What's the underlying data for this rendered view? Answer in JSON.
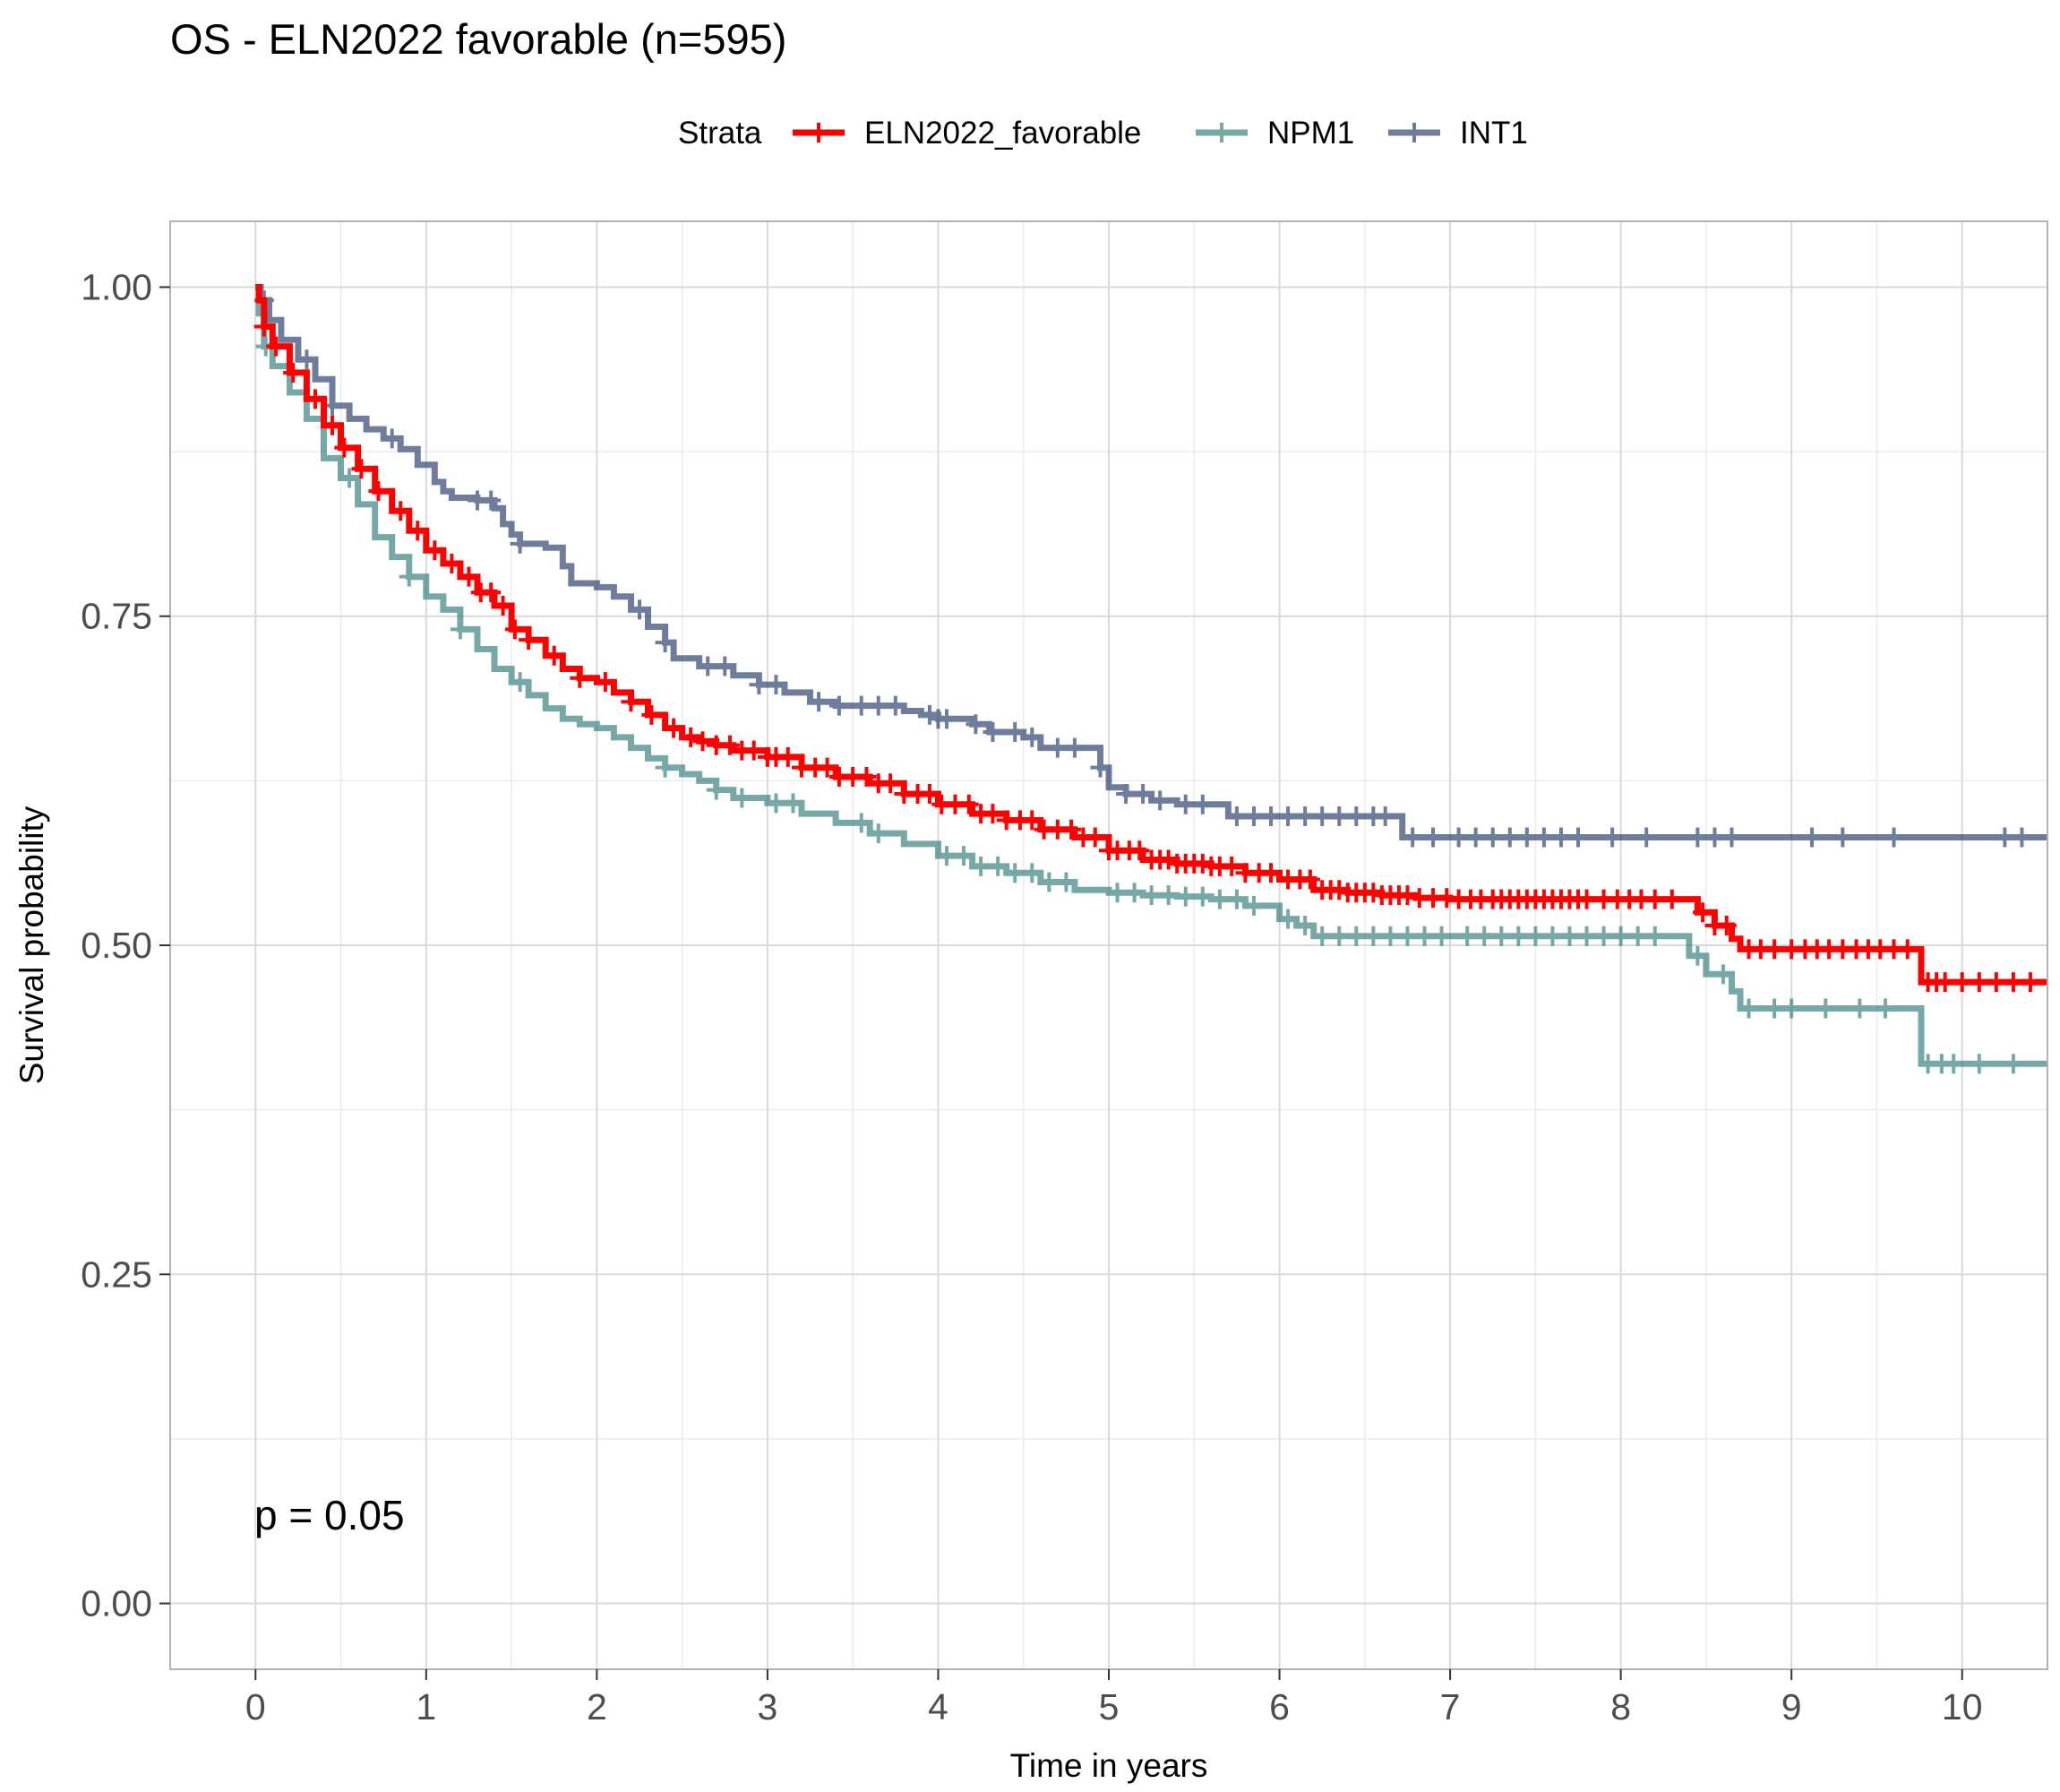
{
  "chart_data": {
    "type": "line",
    "title": "OS - ELN2022 favorable (n=595)",
    "xlabel": "Time in years",
    "ylabel": "Survival probability",
    "xlim": [
      -0.5,
      10.5
    ],
    "ylim": [
      -0.05,
      1.05
    ],
    "x_ticks": [
      "0",
      "1",
      "2",
      "3",
      "4",
      "5",
      "6",
      "7",
      "8",
      "9",
      "10"
    ],
    "y_ticks": [
      "0.00",
      "0.25",
      "0.50",
      "0.75",
      "1.00"
    ],
    "grid": true,
    "legend": {
      "title": "Strata",
      "position": "top"
    },
    "annotation": "p = 0.05",
    "series": [
      {
        "name": "ELN2022_favorable",
        "color": "#ff0000",
        "opacity": 1.0,
        "points": [
          [
            0,
            1.0
          ],
          [
            0.02,
            0.99
          ],
          [
            0.05,
            0.97
          ],
          [
            0.1,
            0.955
          ],
          [
            0.2,
            0.935
          ],
          [
            0.3,
            0.915
          ],
          [
            0.4,
            0.895
          ],
          [
            0.5,
            0.878
          ],
          [
            0.6,
            0.862
          ],
          [
            0.7,
            0.845
          ],
          [
            0.8,
            0.83
          ],
          [
            0.9,
            0.815
          ],
          [
            1.0,
            0.8
          ],
          [
            1.1,
            0.79
          ],
          [
            1.2,
            0.78
          ],
          [
            1.3,
            0.768
          ],
          [
            1.4,
            0.758
          ],
          [
            1.5,
            0.74
          ],
          [
            1.6,
            0.732
          ],
          [
            1.7,
            0.72
          ],
          [
            1.8,
            0.71
          ],
          [
            1.9,
            0.703
          ],
          [
            2.0,
            0.7
          ],
          [
            2.1,
            0.692
          ],
          [
            2.2,
            0.685
          ],
          [
            2.3,
            0.675
          ],
          [
            2.4,
            0.665
          ],
          [
            2.5,
            0.658
          ],
          [
            2.6,
            0.655
          ],
          [
            2.7,
            0.652
          ],
          [
            2.8,
            0.648
          ],
          [
            3.0,
            0.643
          ],
          [
            3.2,
            0.635
          ],
          [
            3.4,
            0.628
          ],
          [
            3.6,
            0.623
          ],
          [
            3.8,
            0.615
          ],
          [
            4.0,
            0.607
          ],
          [
            4.2,
            0.6
          ],
          [
            4.4,
            0.595
          ],
          [
            4.6,
            0.588
          ],
          [
            4.8,
            0.582
          ],
          [
            5.0,
            0.572
          ],
          [
            5.2,
            0.565
          ],
          [
            5.4,
            0.562
          ],
          [
            5.6,
            0.56
          ],
          [
            5.8,
            0.555
          ],
          [
            6.0,
            0.55
          ],
          [
            6.2,
            0.542
          ],
          [
            6.4,
            0.54
          ],
          [
            6.6,
            0.538
          ],
          [
            6.8,
            0.536
          ],
          [
            7.0,
            0.535
          ],
          [
            7.5,
            0.535
          ],
          [
            8.0,
            0.535
          ],
          [
            8.4,
            0.535
          ],
          [
            8.45,
            0.525
          ],
          [
            8.55,
            0.515
          ],
          [
            8.65,
            0.505
          ],
          [
            8.7,
            0.497
          ],
          [
            9.0,
            0.497
          ],
          [
            9.5,
            0.497
          ],
          [
            9.75,
            0.497
          ],
          [
            9.76,
            0.472
          ],
          [
            10.5,
            0.472
          ]
        ],
        "censor_x": [
          0.05,
          0.12,
          0.22,
          0.35,
          0.45,
          0.52,
          0.62,
          0.72,
          0.85,
          0.95,
          1.05,
          1.15,
          1.25,
          1.32,
          1.38,
          1.45,
          1.52,
          1.6,
          1.75,
          1.9,
          2.05,
          2.2,
          2.32,
          2.45,
          2.55,
          2.62,
          2.7,
          2.78,
          2.85,
          2.92,
          3.0,
          3.05,
          3.12,
          3.2,
          3.28,
          3.35,
          3.42,
          3.5,
          3.58,
          3.65,
          3.72,
          3.8,
          3.88,
          3.95,
          4.02,
          4.1,
          4.18,
          4.25,
          4.32,
          4.4,
          4.48,
          4.55,
          4.62,
          4.7,
          4.78,
          4.85,
          4.92,
          5.0,
          5.05,
          5.12,
          5.18,
          5.25,
          5.3,
          5.35,
          5.4,
          5.45,
          5.5,
          5.55,
          5.6,
          5.65,
          5.72,
          5.8,
          5.88,
          5.95,
          6.05,
          6.12,
          6.18,
          6.25,
          6.3,
          6.35,
          6.4,
          6.45,
          6.5,
          6.55,
          6.6,
          6.65,
          6.7,
          6.75,
          6.82,
          6.9,
          6.98,
          7.05,
          7.12,
          7.18,
          7.25,
          7.3,
          7.35,
          7.4,
          7.45,
          7.5,
          7.55,
          7.6,
          7.65,
          7.7,
          7.75,
          7.8,
          7.9,
          7.98,
          8.05,
          8.12,
          8.2,
          8.3,
          8.48,
          8.55,
          8.62,
          8.75,
          8.82,
          8.9,
          9.0,
          9.08,
          9.15,
          9.22,
          9.3,
          9.38,
          9.45,
          9.52,
          9.6,
          9.68,
          9.8,
          9.85,
          9.9,
          10.0,
          10.1,
          10.2,
          10.3,
          10.4
        ]
      },
      {
        "name": "NPM1",
        "color": "#2e7b7b",
        "opacity": 0.65,
        "points": [
          [
            0,
            1.0
          ],
          [
            0.02,
            0.98
          ],
          [
            0.05,
            0.955
          ],
          [
            0.1,
            0.94
          ],
          [
            0.2,
            0.92
          ],
          [
            0.3,
            0.9
          ],
          [
            0.4,
            0.87
          ],
          [
            0.5,
            0.855
          ],
          [
            0.6,
            0.835
          ],
          [
            0.7,
            0.81
          ],
          [
            0.8,
            0.795
          ],
          [
            0.9,
            0.78
          ],
          [
            1.0,
            0.765
          ],
          [
            1.1,
            0.755
          ],
          [
            1.2,
            0.74
          ],
          [
            1.3,
            0.725
          ],
          [
            1.4,
            0.71
          ],
          [
            1.5,
            0.7
          ],
          [
            1.6,
            0.69
          ],
          [
            1.7,
            0.68
          ],
          [
            1.8,
            0.672
          ],
          [
            1.9,
            0.668
          ],
          [
            2.0,
            0.665
          ],
          [
            2.1,
            0.658
          ],
          [
            2.2,
            0.65
          ],
          [
            2.3,
            0.642
          ],
          [
            2.4,
            0.635
          ],
          [
            2.5,
            0.63
          ],
          [
            2.6,
            0.625
          ],
          [
            2.7,
            0.618
          ],
          [
            2.8,
            0.612
          ],
          [
            3.0,
            0.608
          ],
          [
            3.2,
            0.6
          ],
          [
            3.4,
            0.593
          ],
          [
            3.6,
            0.585
          ],
          [
            3.8,
            0.577
          ],
          [
            4.0,
            0.568
          ],
          [
            4.2,
            0.56
          ],
          [
            4.4,
            0.555
          ],
          [
            4.6,
            0.548
          ],
          [
            4.8,
            0.542
          ],
          [
            5.0,
            0.54
          ],
          [
            5.2,
            0.538
          ],
          [
            5.4,
            0.537
          ],
          [
            5.6,
            0.535
          ],
          [
            5.8,
            0.53
          ],
          [
            6.0,
            0.52
          ],
          [
            6.1,
            0.515
          ],
          [
            6.2,
            0.507
          ],
          [
            6.5,
            0.507
          ],
          [
            7.0,
            0.507
          ],
          [
            7.5,
            0.507
          ],
          [
            8.0,
            0.507
          ],
          [
            8.35,
            0.507
          ],
          [
            8.4,
            0.492
          ],
          [
            8.5,
            0.478
          ],
          [
            8.65,
            0.465
          ],
          [
            8.7,
            0.452
          ],
          [
            9.0,
            0.452
          ],
          [
            9.5,
            0.452
          ],
          [
            9.75,
            0.452
          ],
          [
            9.76,
            0.41
          ],
          [
            10.5,
            0.41
          ]
        ],
        "censor_x": [
          0.06,
          0.55,
          0.9,
          1.2,
          1.55,
          2.4,
          2.7,
          2.85,
          3.05,
          3.15,
          3.55,
          3.65,
          4.05,
          4.15,
          4.25,
          4.35,
          4.45,
          4.55,
          4.65,
          4.75,
          5.05,
          5.15,
          5.25,
          5.35,
          5.45,
          5.55,
          5.65,
          5.75,
          5.85,
          6.05,
          6.15,
          6.25,
          6.35,
          6.45,
          6.55,
          6.65,
          6.75,
          6.85,
          6.95,
          7.1,
          7.2,
          7.3,
          7.4,
          7.5,
          7.6,
          7.7,
          7.8,
          7.9,
          8.0,
          8.1,
          8.2,
          8.45,
          8.6,
          8.75,
          8.9,
          9.0,
          9.2,
          9.4,
          9.55,
          9.8,
          9.88,
          9.95,
          10.1,
          10.3
        ]
      },
      {
        "name": "INT1",
        "color": "#23396a",
        "opacity": 0.65,
        "points": [
          [
            0,
            1.0
          ],
          [
            0.03,
            0.99
          ],
          [
            0.08,
            0.975
          ],
          [
            0.15,
            0.96
          ],
          [
            0.25,
            0.945
          ],
          [
            0.35,
            0.93
          ],
          [
            0.45,
            0.91
          ],
          [
            0.55,
            0.9
          ],
          [
            0.65,
            0.892
          ],
          [
            0.75,
            0.885
          ],
          [
            0.85,
            0.877
          ],
          [
            0.95,
            0.865
          ],
          [
            1.05,
            0.852
          ],
          [
            1.1,
            0.845
          ],
          [
            1.15,
            0.84
          ],
          [
            1.3,
            0.838
          ],
          [
            1.4,
            0.832
          ],
          [
            1.45,
            0.82
          ],
          [
            1.5,
            0.812
          ],
          [
            1.55,
            0.805
          ],
          [
            1.7,
            0.802
          ],
          [
            1.8,
            0.788
          ],
          [
            1.85,
            0.775
          ],
          [
            2.0,
            0.772
          ],
          [
            2.1,
            0.765
          ],
          [
            2.2,
            0.755
          ],
          [
            2.3,
            0.742
          ],
          [
            2.4,
            0.73
          ],
          [
            2.45,
            0.718
          ],
          [
            2.6,
            0.712
          ],
          [
            2.8,
            0.705
          ],
          [
            2.95,
            0.698
          ],
          [
            3.1,
            0.692
          ],
          [
            3.25,
            0.685
          ],
          [
            3.4,
            0.682
          ],
          [
            3.6,
            0.682
          ],
          [
            3.8,
            0.678
          ],
          [
            3.9,
            0.675
          ],
          [
            4.0,
            0.672
          ],
          [
            4.2,
            0.668
          ],
          [
            4.3,
            0.662
          ],
          [
            4.5,
            0.658
          ],
          [
            4.6,
            0.65
          ],
          [
            4.75,
            0.65
          ],
          [
            4.9,
            0.65
          ],
          [
            4.95,
            0.635
          ],
          [
            5.0,
            0.62
          ],
          [
            5.1,
            0.615
          ],
          [
            5.25,
            0.61
          ],
          [
            5.4,
            0.607
          ],
          [
            5.5,
            0.607
          ],
          [
            5.65,
            0.607
          ],
          [
            5.7,
            0.598
          ],
          [
            6.0,
            0.598
          ],
          [
            6.5,
            0.598
          ],
          [
            6.7,
            0.598
          ],
          [
            6.72,
            0.582
          ],
          [
            7.0,
            0.582
          ],
          [
            8.0,
            0.582
          ],
          [
            9.0,
            0.582
          ],
          [
            10.0,
            0.582
          ],
          [
            10.5,
            0.582
          ]
        ],
        "censor_x": [
          0.05,
          0.3,
          0.45,
          0.8,
          1.3,
          1.38,
          1.55,
          2.25,
          2.4,
          2.65,
          2.75,
          2.95,
          3.05,
          3.3,
          3.42,
          3.55,
          3.65,
          3.75,
          3.95,
          4.0,
          4.05,
          4.22,
          4.32,
          4.45,
          4.55,
          4.7,
          4.8,
          4.95,
          5.1,
          5.2,
          5.3,
          5.45,
          5.55,
          5.75,
          5.85,
          5.95,
          6.05,
          6.15,
          6.25,
          6.35,
          6.45,
          6.55,
          6.62,
          6.78,
          6.9,
          7.05,
          7.15,
          7.25,
          7.35,
          7.45,
          7.55,
          7.65,
          7.75,
          7.95,
          8.15,
          8.45,
          8.55,
          8.65,
          9.12,
          9.3,
          9.6,
          10.25,
          10.35
        ]
      }
    ]
  }
}
